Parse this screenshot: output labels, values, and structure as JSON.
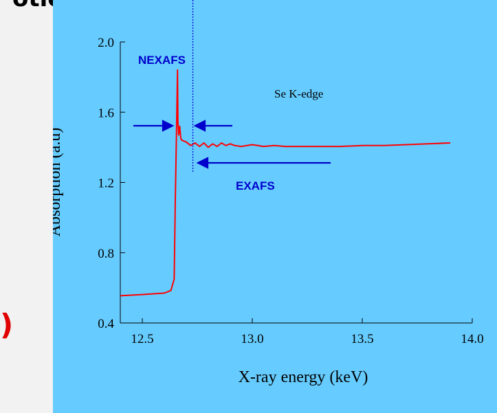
{
  "page": {
    "top_fragment": "otion edge.",
    "left_fragment": ")",
    "panel_color": "#66ccff",
    "background_color": "#f2f2f2"
  },
  "chart_data": {
    "type": "line",
    "title": "",
    "xlabel": "X-ray energy (keV)",
    "ylabel": "Absorption (a.u)",
    "xlim": [
      12.4,
      14.0
    ],
    "ylim": [
      0.4,
      2.0
    ],
    "xticks": [
      "12.5",
      "13.0",
      "13.5",
      "14.0"
    ],
    "yticks": [
      "0.4",
      "0.8",
      "1.2",
      "1.6",
      "2.0"
    ],
    "grid": false,
    "annotations": {
      "sample_label": "Se K-edge",
      "nexafs_label": "NEXAFS",
      "exafs_label": "EXAFS"
    },
    "divider_x": 12.73,
    "colors": {
      "series": "#ff0000",
      "arrows": "#0000cc",
      "annotation_text": "#0000cc",
      "divider": "#0000cc"
    },
    "series": [
      {
        "x": [
          12.4,
          12.5,
          12.6,
          12.63,
          12.645,
          12.65,
          12.655,
          12.66,
          12.662,
          12.665,
          12.67,
          12.675,
          12.68,
          12.69,
          12.7,
          12.72,
          12.74,
          12.76,
          12.78,
          12.8,
          12.82,
          12.84,
          12.86,
          12.88,
          12.9,
          12.92,
          12.95,
          13.0,
          13.05,
          13.1,
          13.15,
          13.2,
          13.3,
          13.4,
          13.5,
          13.6,
          13.7,
          13.8,
          13.9
        ],
        "y": [
          0.555,
          0.562,
          0.57,
          0.585,
          0.65,
          1.1,
          1.45,
          1.84,
          1.55,
          1.47,
          1.52,
          1.45,
          1.44,
          1.435,
          1.43,
          1.41,
          1.425,
          1.405,
          1.425,
          1.4,
          1.42,
          1.405,
          1.425,
          1.41,
          1.42,
          1.41,
          1.405,
          1.415,
          1.405,
          1.41,
          1.405,
          1.405,
          1.405,
          1.405,
          1.41,
          1.41,
          1.415,
          1.42,
          1.425
        ]
      }
    ]
  }
}
